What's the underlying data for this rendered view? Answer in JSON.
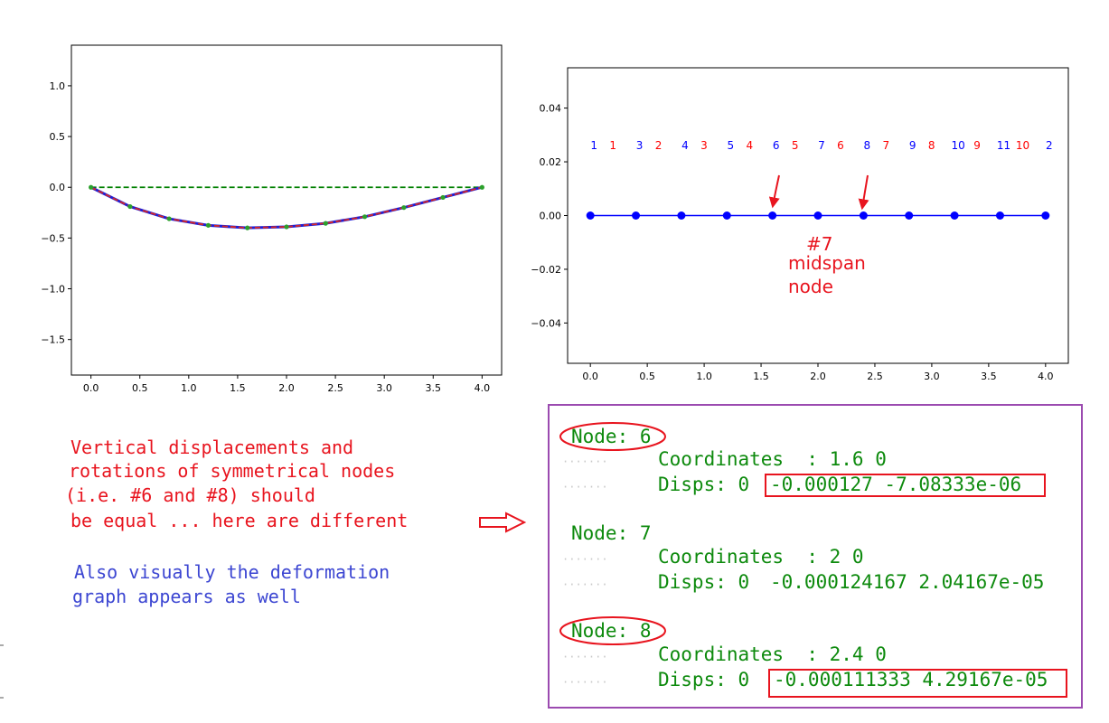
{
  "chart_data": [
    {
      "type": "line",
      "title": "",
      "xlabel": "",
      "ylabel": "",
      "xlim": [
        -0.2,
        4.2
      ],
      "ylim": [
        -1.85,
        1.4
      ],
      "xticks": [
        "0.0",
        "0.5",
        "1.0",
        "1.5",
        "2.0",
        "2.5",
        "3.0",
        "3.5",
        "4.0"
      ],
      "yticks": [
        "1.0",
        "0.5",
        "0.0",
        "−0.5",
        "−1.0",
        "−1.5"
      ],
      "grid": false,
      "series": [
        {
          "color": "#008000",
          "style": "dashed",
          "x": [
            0.0,
            4.0
          ],
          "y": [
            0.0,
            0.0
          ]
        },
        {
          "color": "#1f1fd6",
          "style": "solid",
          "x": [
            0.0,
            0.4,
            0.8,
            1.2,
            1.6,
            2.0,
            2.4,
            2.8,
            3.2,
            3.6,
            4.0
          ],
          "y": [
            0.0,
            -0.19,
            -0.31,
            -0.375,
            -0.4,
            -0.39,
            -0.355,
            -0.29,
            -0.2,
            -0.1,
            0.0
          ]
        },
        {
          "color": "#d62728",
          "style": "dashed",
          "x": [
            0.0,
            0.4,
            0.8,
            1.2,
            1.6,
            2.0,
            2.4,
            2.8,
            3.2,
            3.6,
            4.0
          ],
          "y": [
            0.0,
            -0.19,
            -0.31,
            -0.375,
            -0.4,
            -0.39,
            -0.355,
            -0.29,
            -0.2,
            -0.1,
            0.0
          ]
        },
        {
          "color": "#2ca02c",
          "style": "markers",
          "x": [
            0.0,
            0.4,
            0.8,
            1.2,
            1.6,
            2.0,
            2.4,
            2.8,
            3.2,
            3.6,
            4.0
          ],
          "y": [
            0.0,
            -0.19,
            -0.31,
            -0.375,
            -0.4,
            -0.39,
            -0.355,
            -0.29,
            -0.2,
            -0.1,
            0.0
          ]
        }
      ]
    },
    {
      "type": "line",
      "title": "",
      "xlabel": "",
      "ylabel": "",
      "xlim": [
        -0.2,
        4.2
      ],
      "ylim": [
        -0.055,
        0.055
      ],
      "xticks": [
        "0.0",
        "0.5",
        "1.0",
        "1.5",
        "2.0",
        "2.5",
        "3.0",
        "3.5",
        "4.0"
      ],
      "yticks": [
        "0.04",
        "0.02",
        "0.00",
        "−0.02",
        "−0.04"
      ],
      "grid": false,
      "line_color": "#0000ff",
      "nodes_x": [
        0.0,
        0.4,
        0.8,
        1.2,
        1.6,
        2.0,
        2.4,
        2.8,
        3.2,
        3.6,
        4.0
      ],
      "nodes_y": [
        0,
        0,
        0,
        0,
        0,
        0,
        0,
        0,
        0,
        0,
        0
      ],
      "node_labels": [
        "1",
        "3",
        "4",
        "5",
        "6",
        "7",
        "8",
        "9",
        "10",
        "11",
        "2"
      ],
      "element_labels": [
        "1",
        "2",
        "3",
        "4",
        "5",
        "6",
        "7",
        "8",
        "9",
        "10"
      ],
      "label_y": 0.023,
      "node_label_color": "#0000ff",
      "element_label_color": "#ff0000"
    }
  ],
  "annotations": {
    "midspan_hash": "#7",
    "midspan_line1": "midspan",
    "midspan_line2": "node"
  },
  "note": {
    "red_lines": [
      "Vertical displacements and",
      "rotations of symmetrical nodes",
      "(i.e. #6 and #8) should",
      "be equal ... here are different"
    ],
    "blue_lines": [
      "Also visually the deformation",
      "graph appears as well"
    ]
  },
  "terminal": {
    "nodes": [
      {
        "title": "Node: 6",
        "coords": "Coordinates  : 1.6 0",
        "disps_prefix": "Disps: 0 ",
        "disps_values": "-0.000127 -7.08333e-06"
      },
      {
        "title": "Node: 7",
        "coords": "Coordinates  : 2 0",
        "disps_prefix": "Disps: 0 ",
        "disps_values": "-0.000124167 2.04167e-05"
      },
      {
        "title": "Node: 8",
        "coords": "Coordinates  : 2.4 0",
        "disps_prefix": "Disps: 0 ",
        "disps_values": "-0.000111333 4.29167e-05"
      }
    ],
    "dots": "·······"
  },
  "colors": {
    "annotation_red": "#e8141e",
    "note_blue": "#3c46d2",
    "terminal_green": "#0d8a0d",
    "terminal_border": "#9b4bb0"
  }
}
